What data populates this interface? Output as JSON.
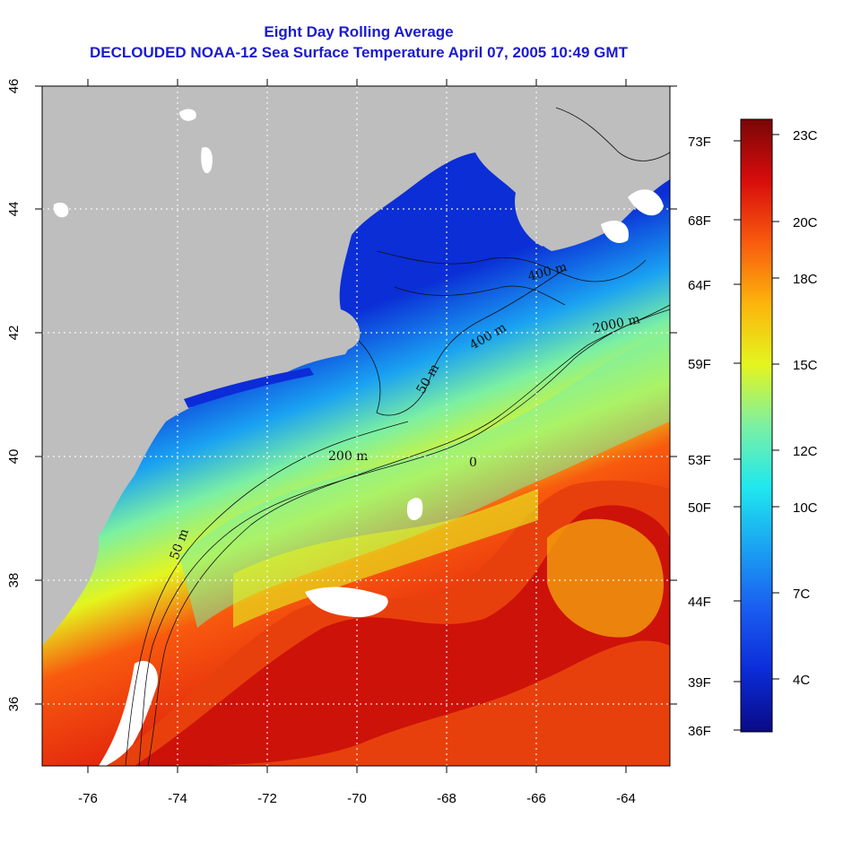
{
  "title": {
    "line1": "Eight Day Rolling Average",
    "line2": "DECLOUDED NOAA-12 Sea Surface Temperature April 07, 2005 10:49 GMT"
  },
  "axes": {
    "x_ticks": [
      "-76",
      "-74",
      "-72",
      "-70",
      "-68",
      "-66",
      "-64"
    ],
    "y_ticks": [
      "36",
      "38",
      "40",
      "42",
      "44",
      "46"
    ],
    "lon_range": [
      -77,
      -63
    ],
    "lat_range": [
      35,
      46
    ]
  },
  "contours": {
    "labels": [
      "400 m",
      "2000 m",
      "400 m",
      "50 m",
      "200 m",
      "0",
      "50 m"
    ]
  },
  "colorbar": {
    "celsius_labels": [
      "23C",
      "20C",
      "18C",
      "15C",
      "12C",
      "10C",
      "7C",
      "4C"
    ],
    "fahrenheit_labels": [
      "73F",
      "68F",
      "64F",
      "59F",
      "53F",
      "50F",
      "44F",
      "39F",
      "36F"
    ],
    "colors": [
      "#0a0a86",
      "#0b2cd8",
      "#1a5cf0",
      "#1aa2f2",
      "#20e8ee",
      "#7cf0a2",
      "#e4f51e",
      "#fcb40c",
      "#f85a0e",
      "#d80c0c",
      "#7a0606"
    ]
  },
  "colors": {
    "land": "#bebebe",
    "cloud": "#ffffff",
    "title": "#1b1bcf"
  }
}
